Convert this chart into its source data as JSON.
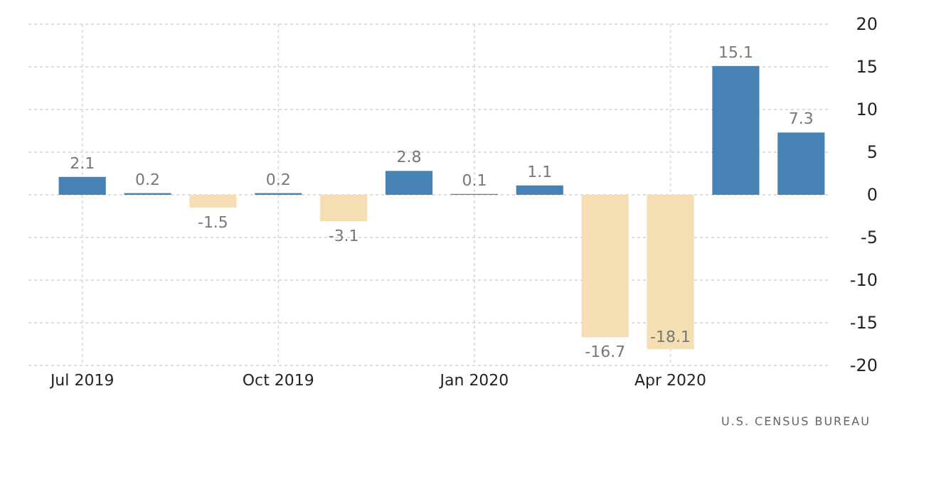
{
  "chart_data": {
    "type": "bar",
    "categories": [
      "Jul 2019",
      null,
      null,
      "Oct 2019",
      null,
      null,
      "Jan 2020",
      null,
      null,
      "Apr 2020",
      null,
      null
    ],
    "values": [
      2.1,
      0.2,
      -1.5,
      0.2,
      -3.1,
      2.8,
      0.1,
      1.1,
      -16.7,
      -18.1,
      15.1,
      7.3
    ],
    "colors": [
      "#4682b4",
      "#4682b4",
      "#f5deb3",
      "#4682b4",
      "#f5deb3",
      "#4682b4",
      "#4682b4",
      "#4682b4",
      "#f5deb3",
      "#f5deb3",
      "#4682b4",
      "#4682b4"
    ],
    "ylim": [
      -20,
      20
    ],
    "yticks": [
      -20,
      -15,
      -10,
      -5,
      0,
      5,
      10,
      15,
      20
    ],
    "grid": true,
    "data_labels": true,
    "annotations": [
      "U.S. CENSUS BUREAU"
    ]
  }
}
